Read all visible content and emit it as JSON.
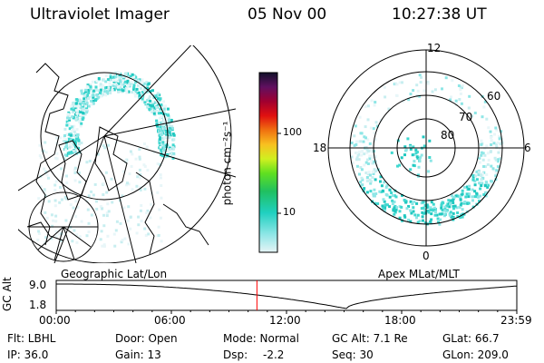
{
  "header": {
    "instrument": "Ultraviolet Imager",
    "date": "05 Nov 00",
    "time": "10:27:38 UT"
  },
  "colorbar": {
    "unit_label": "photon cm⁻²s⁻¹",
    "ticks": [
      "100",
      "10"
    ]
  },
  "polar": {
    "mlt_labels": {
      "top": "12",
      "left": "18",
      "right": "6",
      "bottom": "0"
    },
    "lat_labels": [
      "60",
      "70",
      "80"
    ]
  },
  "panel_labels": {
    "left": "Geographic Lat/Lon",
    "right": "Apex MLat/MLT"
  },
  "timeline": {
    "axis_label": "GC Alt",
    "y_ticks": [
      "9.0",
      "1.8"
    ],
    "x_ticks": [
      "00:00",
      "06:00",
      "12:00",
      "18:00",
      "23:59"
    ],
    "current_time_fraction": 0.4358
  },
  "info": {
    "filter": "Flt: LBHL",
    "ip": "IP: 36.0",
    "door": "Door: Open",
    "gain": "Gain: 13",
    "mode": "Mode: Normal",
    "dsp_label": "Dsp:",
    "dsp_value": "-2.2",
    "gc_alt": "GC Alt: 7.1 Re",
    "seq": "Seq: 30",
    "glat": "GLat:  66.7",
    "glon": "GLon: 209.0"
  }
}
